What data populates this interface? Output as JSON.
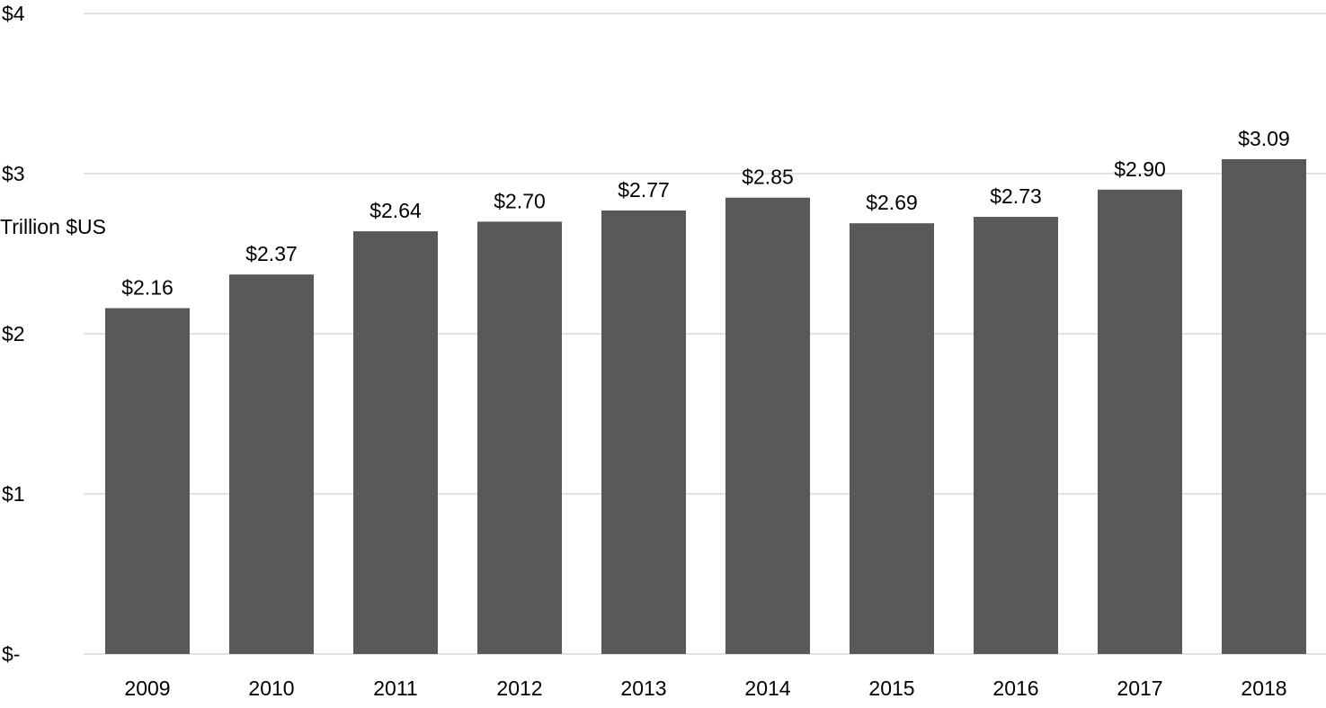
{
  "chart_data": {
    "type": "bar",
    "title": "",
    "xlabel": "",
    "ylabel": "Trillion $US",
    "categories": [
      "2009",
      "2010",
      "2011",
      "2012",
      "2013",
      "2014",
      "2015",
      "2016",
      "2017",
      "2018"
    ],
    "values": [
      2.16,
      2.37,
      2.64,
      2.7,
      2.77,
      2.85,
      2.69,
      2.73,
      2.9,
      3.09
    ],
    "data_labels": [
      "$2.16",
      "$2.37",
      "$2.64",
      "$2.70",
      "$2.77",
      "$2.85",
      "$2.69",
      "$2.73",
      "$2.90",
      "$3.09"
    ],
    "ylim": [
      0,
      4
    ],
    "y_ticks": [
      0,
      1,
      2,
      3,
      4
    ],
    "y_tick_labels": [
      "$-",
      "$1",
      "$2",
      "$3",
      "$4"
    ],
    "grid": true,
    "legend": "none",
    "colors": {
      "bar": "#595959",
      "grid": "#d9d9d9",
      "text": "#000000"
    }
  }
}
